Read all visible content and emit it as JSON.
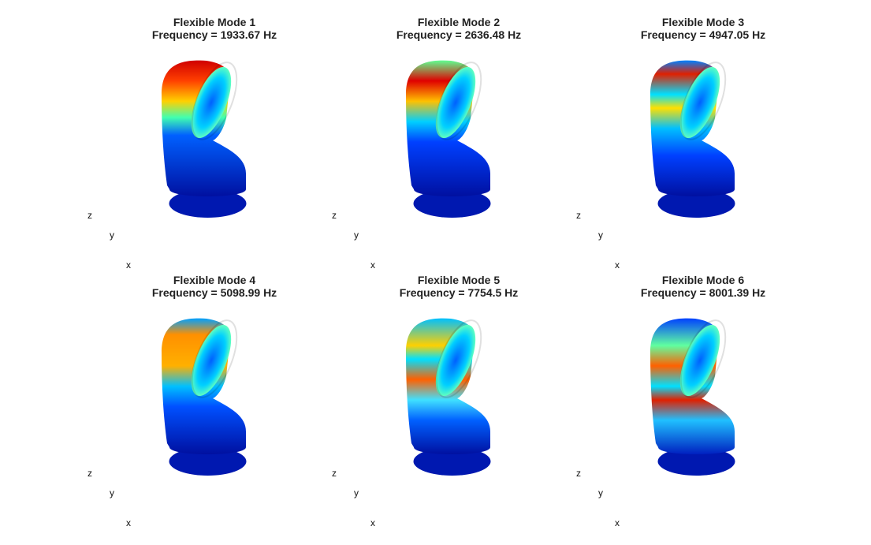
{
  "panels": [
    {
      "title": "Flexible Mode 1",
      "subtitle": "Frequency = 1933.67 Hz",
      "axis_labels": {
        "z": "z",
        "y": "y",
        "x": "x"
      }
    },
    {
      "title": "Flexible Mode 2",
      "subtitle": "Frequency = 2636.48 Hz",
      "axis_labels": {
        "z": "z",
        "y": "y",
        "x": "x"
      }
    },
    {
      "title": "Flexible Mode 3",
      "subtitle": "Frequency = 4947.05 Hz",
      "axis_labels": {
        "z": "z",
        "y": "y",
        "x": "x"
      }
    },
    {
      "title": "Flexible Mode 4",
      "subtitle": "Frequency = 5098.99 Hz",
      "axis_labels": {
        "z": "z",
        "y": "y",
        "x": "x"
      }
    },
    {
      "title": "Flexible Mode 5",
      "subtitle": "Frequency = 7754.5 Hz",
      "axis_labels": {
        "z": "z",
        "y": "y",
        "x": "x"
      }
    },
    {
      "title": "Flexible Mode 6",
      "subtitle": "Frequency = 8001.39 Hz",
      "axis_labels": {
        "z": "z",
        "y": "y",
        "x": "x"
      }
    }
  ]
}
